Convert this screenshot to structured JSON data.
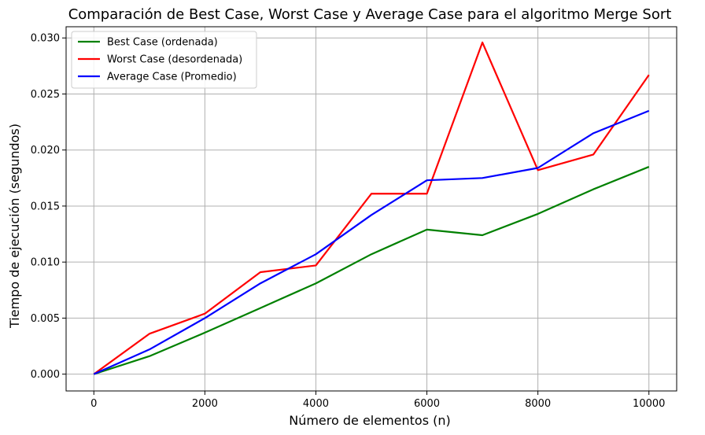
{
  "chart_data": {
    "type": "line",
    "title": "Comparación de Best Case, Worst Case y Average Case para el algoritmo Merge Sort",
    "xlabel": "Número de elementos (n)",
    "ylabel": "Tiempo de ejecución (segundos)",
    "xlim": [
      -500,
      10500
    ],
    "ylim": [
      -0.0015,
      0.031
    ],
    "xticks": [
      0,
      2000,
      4000,
      6000,
      8000,
      10000
    ],
    "xtick_labels": [
      "0",
      "2000",
      "4000",
      "6000",
      "8000",
      "10000"
    ],
    "yticks": [
      0.0,
      0.005,
      0.01,
      0.015,
      0.02,
      0.025,
      0.03
    ],
    "ytick_labels": [
      "0.000",
      "0.005",
      "0.010",
      "0.015",
      "0.020",
      "0.025",
      "0.030"
    ],
    "grid": true,
    "legend_position": "top-left",
    "x": [
      0,
      1000,
      2000,
      3000,
      4000,
      5000,
      6000,
      7000,
      8000,
      9000,
      10000
    ],
    "series": [
      {
        "name": "Best Case (ordenada)",
        "color": "#008000",
        "values": [
          0.0,
          0.0016,
          0.0037,
          0.0059,
          0.0081,
          0.0107,
          0.0129,
          0.0124,
          0.0143,
          0.0165,
          0.0185
        ]
      },
      {
        "name": "Worst Case (desordenada)",
        "color": "#ff0000",
        "values": [
          0.0,
          0.0036,
          0.0054,
          0.0091,
          0.0097,
          0.0161,
          0.0161,
          0.0296,
          0.0182,
          0.0196,
          0.0267
        ]
      },
      {
        "name": "Average Case (Promedio)",
        "color": "#0000ff",
        "values": [
          0.0,
          0.0022,
          0.005,
          0.0081,
          0.0107,
          0.0142,
          0.0173,
          0.0175,
          0.0184,
          0.0215,
          0.0235
        ]
      }
    ]
  }
}
